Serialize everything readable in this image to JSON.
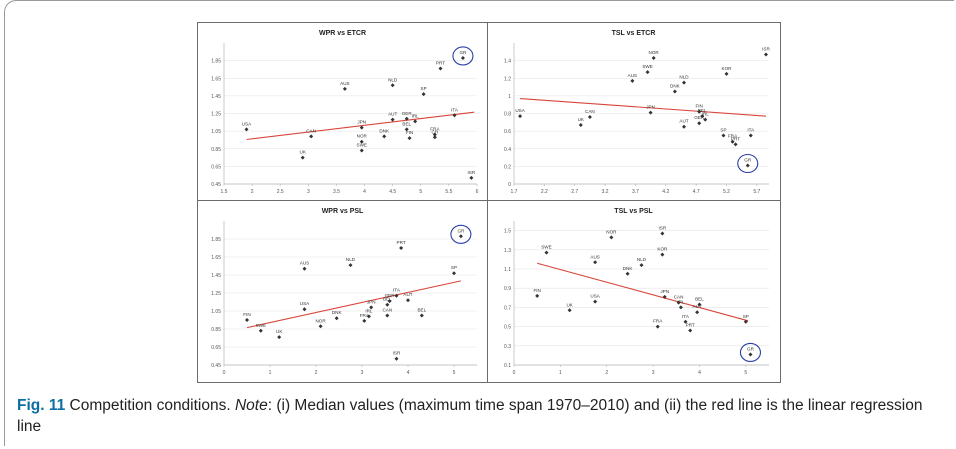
{
  "caption": {
    "label": "Fig. 11",
    "text_a": " Competition conditions. ",
    "note": "Note",
    "text_b": ": (i) Median values (maximum time span 1970–2010) and (ii) the red line is the linear regression line"
  },
  "colors": {
    "point": "#333333",
    "trend": "#d9453a",
    "circle": "#2b3fa8",
    "grid": "#e3e3e3",
    "axis": "#b5b5b5"
  },
  "chart_data": [
    {
      "type": "scatter",
      "title": "WPR vs ETCR",
      "xlim": [
        1.5,
        6
      ],
      "ylim": [
        0.45,
        2.05
      ],
      "xticks": [
        "1.5",
        "2",
        "2.5",
        "3",
        "3.5",
        "4",
        "4.5",
        "5",
        "5.5",
        "6"
      ],
      "yticks": [
        "0.45",
        "0.65",
        "0.85",
        "1.05",
        "1.25",
        "1.45",
        "1.65",
        "1.85"
      ],
      "points": [
        {
          "label": "USA",
          "x": 1.9,
          "y": 1.07
        },
        {
          "label": "UK",
          "x": 2.9,
          "y": 0.75
        },
        {
          "label": "CAN",
          "x": 3.05,
          "y": 0.99
        },
        {
          "label": "AUS",
          "x": 3.65,
          "y": 1.53
        },
        {
          "label": "JPN",
          "x": 3.95,
          "y": 1.09
        },
        {
          "label": "NOR",
          "x": 3.95,
          "y": 0.93
        },
        {
          "label": "SWE",
          "x": 3.95,
          "y": 0.83
        },
        {
          "label": "DNK",
          "x": 4.35,
          "y": 0.99
        },
        {
          "label": "NLD",
          "x": 4.5,
          "y": 1.57
        },
        {
          "label": "AUT",
          "x": 4.5,
          "y": 1.18
        },
        {
          "label": "GER",
          "x": 4.75,
          "y": 1.19
        },
        {
          "label": "BEL",
          "x": 4.75,
          "y": 1.07
        },
        {
          "label": "IRL",
          "x": 4.9,
          "y": 1.16
        },
        {
          "label": "FIN",
          "x": 4.8,
          "y": 0.97
        },
        {
          "label": "SP",
          "x": 5.05,
          "y": 1.47
        },
        {
          "label": "FRA",
          "x": 5.25,
          "y": 1.01
        },
        {
          "label": "CH",
          "x": 5.25,
          "y": 0.98
        },
        {
          "label": "PRT",
          "x": 5.35,
          "y": 1.76
        },
        {
          "label": "ITA",
          "x": 5.6,
          "y": 1.23
        },
        {
          "label": "GR",
          "x": 5.75,
          "y": 1.88
        },
        {
          "label": "ISR",
          "x": 5.9,
          "y": 0.52
        }
      ],
      "trend": [
        [
          1.9,
          0.955
        ],
        [
          5.95,
          1.265
        ]
      ],
      "circled": "GR"
    },
    {
      "type": "scatter",
      "title": "TSL vs ETCR",
      "xlim": [
        1.7,
        5.9
      ],
      "ylim": [
        0,
        1.6
      ],
      "xticks": [
        "1.7",
        "2.2",
        "2.7",
        "3.2",
        "3.7",
        "4.2",
        "4.7",
        "5.2",
        "5.7"
      ],
      "yticks": [
        "0",
        "0.2",
        "0.4",
        "0.6",
        "0.8",
        "1",
        "1.2",
        "1.4"
      ],
      "points": [
        {
          "label": "USA",
          "x": 1.8,
          "y": 0.77
        },
        {
          "label": "UK",
          "x": 2.8,
          "y": 0.67
        },
        {
          "label": "CAN",
          "x": 2.95,
          "y": 0.76
        },
        {
          "label": "AUS",
          "x": 3.65,
          "y": 1.17
        },
        {
          "label": "SWE",
          "x": 3.9,
          "y": 1.27
        },
        {
          "label": "NOR",
          "x": 4.0,
          "y": 1.43
        },
        {
          "label": "JPN",
          "x": 3.95,
          "y": 0.81
        },
        {
          "label": "DNK",
          "x": 4.35,
          "y": 1.05
        },
        {
          "label": "NLD",
          "x": 4.5,
          "y": 1.15
        },
        {
          "label": "AUT",
          "x": 4.5,
          "y": 0.65
        },
        {
          "label": "FIN",
          "x": 4.75,
          "y": 0.82
        },
        {
          "label": "BEL",
          "x": 4.8,
          "y": 0.77
        },
        {
          "label": "IRL",
          "x": 4.85,
          "y": 0.73
        },
        {
          "label": "GER",
          "x": 4.75,
          "y": 0.69
        },
        {
          "label": "KOR",
          "x": 5.2,
          "y": 1.25
        },
        {
          "label": "SP",
          "x": 5.15,
          "y": 0.55
        },
        {
          "label": "FRA",
          "x": 5.3,
          "y": 0.48
        },
        {
          "label": "PRT",
          "x": 5.35,
          "y": 0.45
        },
        {
          "label": "ITA",
          "x": 5.6,
          "y": 0.55
        },
        {
          "label": "GR",
          "x": 5.55,
          "y": 0.21
        },
        {
          "label": "ISR",
          "x": 5.85,
          "y": 1.47
        }
      ],
      "trend": [
        [
          1.8,
          0.97
        ],
        [
          5.85,
          0.77
        ]
      ],
      "circled": "GR"
    },
    {
      "type": "scatter",
      "title": "WPR vs PSL",
      "xlim": [
        0,
        5.5
      ],
      "ylim": [
        0.45,
        2.05
      ],
      "xticks": [
        "0",
        "1",
        "2",
        "3",
        "4",
        "5"
      ],
      "yticks": [
        "0.45",
        "0.65",
        "0.85",
        "1.05",
        "1.25",
        "1.45",
        "1.65",
        "1.85"
      ],
      "points": [
        {
          "label": "FIN",
          "x": 0.5,
          "y": 0.95
        },
        {
          "label": "SWE",
          "x": 0.8,
          "y": 0.83
        },
        {
          "label": "UK",
          "x": 1.2,
          "y": 0.76
        },
        {
          "label": "USA",
          "x": 1.75,
          "y": 1.07
        },
        {
          "label": "AUS",
          "x": 1.75,
          "y": 1.52
        },
        {
          "label": "NOR",
          "x": 2.1,
          "y": 0.88
        },
        {
          "label": "DNK",
          "x": 2.45,
          "y": 0.97
        },
        {
          "label": "NLD",
          "x": 2.75,
          "y": 1.56
        },
        {
          "label": "FRA",
          "x": 3.05,
          "y": 0.94
        },
        {
          "label": "JPN",
          "x": 3.2,
          "y": 1.09
        },
        {
          "label": "IRL",
          "x": 3.15,
          "y": 0.99
        },
        {
          "label": "CAN",
          "x": 3.55,
          "y": 1.0
        },
        {
          "label": "BEL",
          "x": 3.55,
          "y": 1.12
        },
        {
          "label": "GER",
          "x": 3.6,
          "y": 1.16
        },
        {
          "label": "ITA",
          "x": 3.75,
          "y": 1.22
        },
        {
          "label": "AUT",
          "x": 4.0,
          "y": 1.17
        },
        {
          "label": "BEL",
          "x": 4.3,
          "y": 1.0
        },
        {
          "label": "PRT",
          "x": 3.85,
          "y": 1.75
        },
        {
          "label": "SP",
          "x": 5.0,
          "y": 1.47
        },
        {
          "label": "GR",
          "x": 5.15,
          "y": 1.88
        },
        {
          "label": "ISR",
          "x": 3.75,
          "y": 0.52
        }
      ],
      "trend": [
        [
          0.5,
          0.865
        ],
        [
          5.15,
          1.385
        ]
      ],
      "circled": "GR"
    },
    {
      "type": "scatter",
      "title": "TSL vs PSL",
      "xlim": [
        0,
        5.5
      ],
      "ylim": [
        0.1,
        1.6
      ],
      "xticks": [
        "0",
        "1",
        "2",
        "3",
        "4",
        "5"
      ],
      "yticks": [
        "0.1",
        "0.3",
        "0.5",
        "0.7",
        "0.9",
        "1.1",
        "1.3",
        "1.5"
      ],
      "points": [
        {
          "label": "FIN",
          "x": 0.5,
          "y": 0.82
        },
        {
          "label": "SWE",
          "x": 0.7,
          "y": 1.27
        },
        {
          "label": "UK",
          "x": 1.2,
          "y": 0.67
        },
        {
          "label": "USA",
          "x": 1.75,
          "y": 0.76
        },
        {
          "label": "AUS",
          "x": 1.75,
          "y": 1.17
        },
        {
          "label": "NOR",
          "x": 2.1,
          "y": 1.43
        },
        {
          "label": "DNK",
          "x": 2.45,
          "y": 1.05
        },
        {
          "label": "NLD",
          "x": 2.75,
          "y": 1.14
        },
        {
          "label": "KOR",
          "x": 3.2,
          "y": 1.25
        },
        {
          "label": "ISR",
          "x": 3.2,
          "y": 1.47
        },
        {
          "label": "JPN",
          "x": 3.25,
          "y": 0.81
        },
        {
          "label": "CAN",
          "x": 3.55,
          "y": 0.75
        },
        {
          "label": "IRL",
          "x": 3.6,
          "y": 0.7
        },
        {
          "label": "FRA",
          "x": 3.1,
          "y": 0.5
        },
        {
          "label": "BEL",
          "x": 4.0,
          "y": 0.73
        },
        {
          "label": "AUT",
          "x": 3.95,
          "y": 0.65
        },
        {
          "label": "ITA",
          "x": 3.7,
          "y": 0.55
        },
        {
          "label": "PRT",
          "x": 3.8,
          "y": 0.46
        },
        {
          "label": "SP",
          "x": 5.0,
          "y": 0.55
        },
        {
          "label": "GR",
          "x": 5.1,
          "y": 0.21
        }
      ],
      "trend": [
        [
          0.5,
          1.16
        ],
        [
          5.05,
          0.56
        ]
      ],
      "circled": "GR"
    }
  ]
}
